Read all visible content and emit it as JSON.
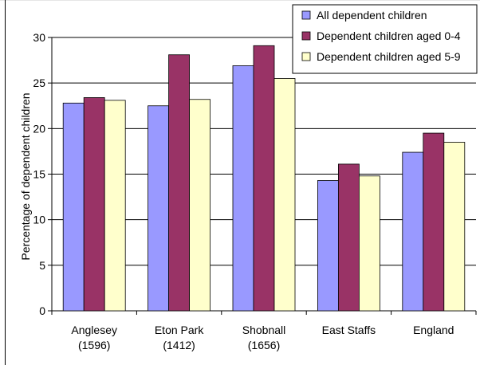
{
  "chart_data": {
    "type": "bar",
    "categories": [
      [
        "Anglesey",
        "(1596)"
      ],
      [
        "Eton Park",
        "(1412)"
      ],
      [
        "Shobnall",
        "(1656)"
      ],
      [
        "East Staffs"
      ],
      [
        "England"
      ]
    ],
    "series": [
      {
        "name": "All dependent children",
        "color": "#9999ff",
        "values": [
          22.8,
          22.5,
          26.9,
          14.3,
          17.4
        ]
      },
      {
        "name": "Dependent children aged 0-4",
        "color": "#993366",
        "values": [
          23.4,
          28.1,
          29.1,
          16.1,
          19.5
        ]
      },
      {
        "name": "Dependent children aged 5-9",
        "color": "#ffffcc",
        "values": [
          23.1,
          23.2,
          25.5,
          14.8,
          18.5
        ]
      }
    ],
    "ylabel": "Percentage of dependent children",
    "xlabel": "",
    "ylim": [
      0,
      30
    ],
    "yticks": [
      0,
      5,
      10,
      15,
      20,
      25,
      30
    ],
    "grid": true,
    "legend_position": "top-right"
  }
}
